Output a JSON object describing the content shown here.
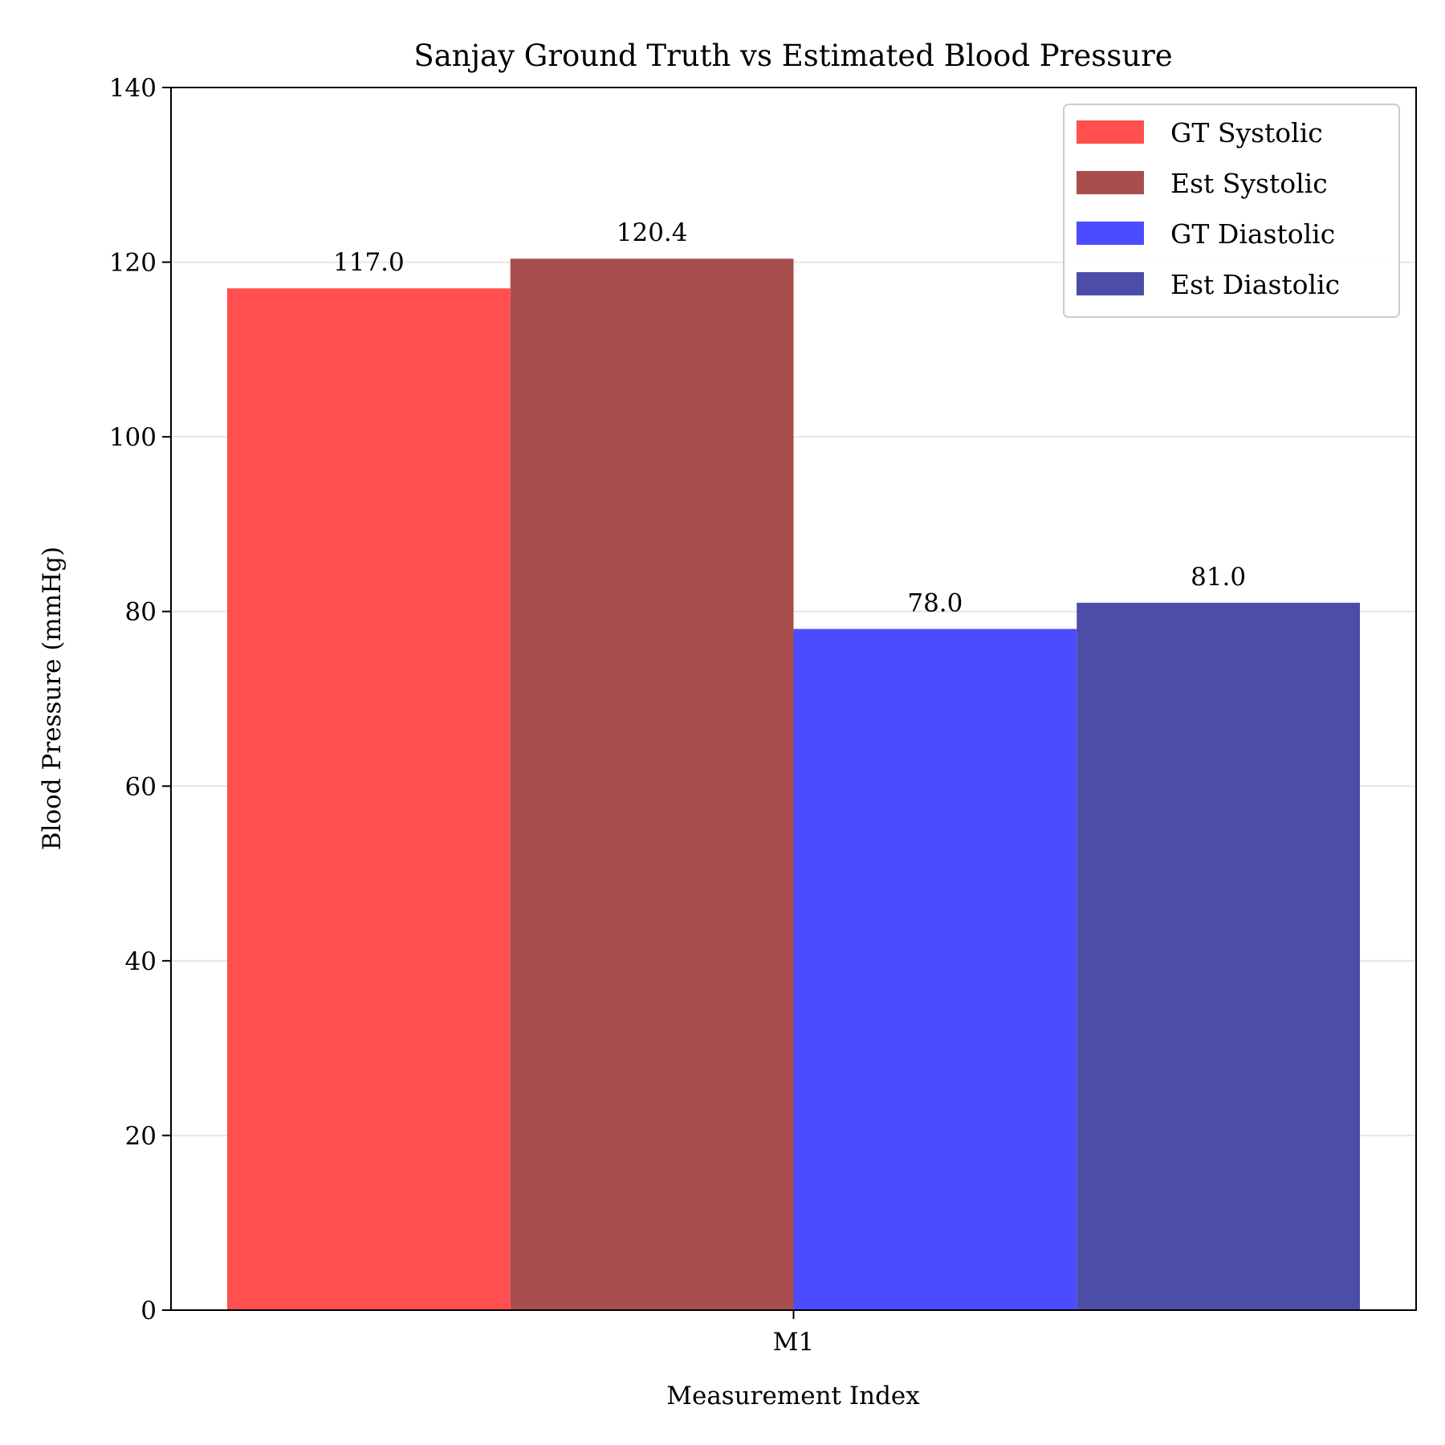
{
  "chart_data": {
    "type": "bar",
    "title": "Sanjay Ground Truth vs Estimated Blood Pressure",
    "xlabel": "Measurement Index",
    "ylabel": "Blood Pressure (mmHg)",
    "categories": [
      "M1"
    ],
    "ylim": [
      0,
      140
    ],
    "yticks": [
      0,
      20,
      40,
      60,
      80,
      100,
      120,
      140
    ],
    "grid": "horizontal",
    "legend_position": "top-right",
    "series": [
      {
        "name": "GT Systolic",
        "values": [
          117.0
        ],
        "label": "117.0",
        "color": "#ff4f4f"
      },
      {
        "name": "Est Systolic",
        "values": [
          120.4
        ],
        "label": "120.4",
        "color": "#a94d4d"
      },
      {
        "name": "GT Diastolic",
        "values": [
          78.0
        ],
        "label": "78.0",
        "color": "#4c4cff"
      },
      {
        "name": "Est Diastolic",
        "values": [
          81.0
        ],
        "label": "81.0",
        "color": "#4b4da8"
      }
    ]
  }
}
